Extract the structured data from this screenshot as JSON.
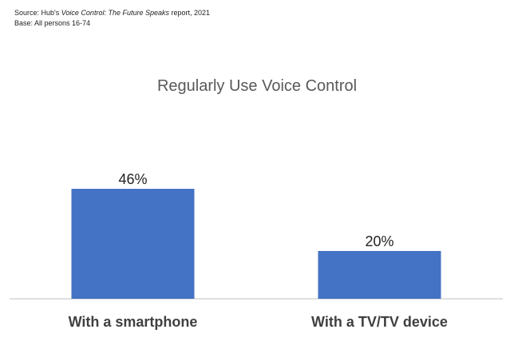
{
  "source": {
    "prefix": "Source: Hub's ",
    "report_title": "Voice Control: The Future Speaks",
    "suffix": " report, 2021",
    "base": "Base: All persons 16-74"
  },
  "colors": {
    "bar": "#4472c4",
    "axis": "#bfbfbf"
  },
  "chart_data": {
    "type": "bar",
    "title": "Regularly Use Voice Control",
    "categories": [
      "With a smartphone",
      "With a TV/TV device"
    ],
    "values": [
      46,
      20
    ],
    "data_labels": [
      "46%",
      "20%"
    ],
    "ylim": [
      0,
      50
    ],
    "grid": false,
    "xlabel": "",
    "ylabel": ""
  }
}
